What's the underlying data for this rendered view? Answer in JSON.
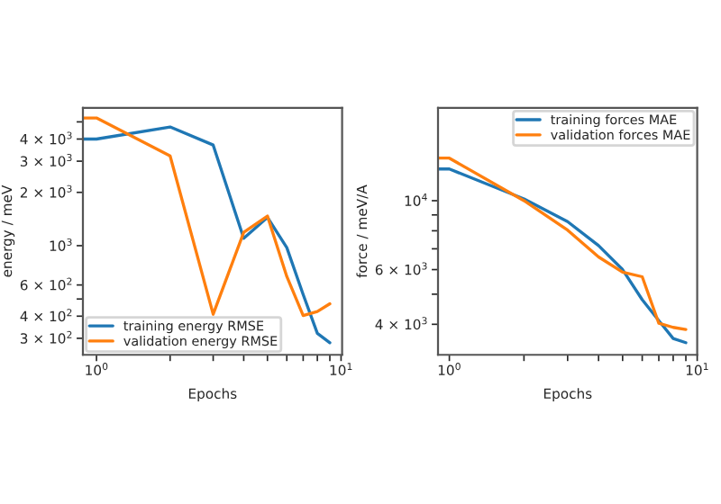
{
  "chart_data": [
    {
      "type": "line",
      "xlabel": "Epochs",
      "ylabel": "energy / meV",
      "log": "xy",
      "legend": "lower left",
      "grid": false,
      "x": [
        0.88,
        1,
        2,
        3,
        4,
        5,
        6,
        7,
        8,
        9
      ],
      "series": [
        {
          "name": "training energy RMSE",
          "color": "#1f77b4",
          "values": [
            4000,
            4000,
            4680,
            3700,
            1100,
            1445,
            975,
            530,
            320,
            283
          ]
        },
        {
          "name": "validation energy RMSE",
          "color": "#ff7f0e",
          "values": [
            5260,
            5260,
            3210,
            410,
            1190,
            1470,
            670,
            403,
            425,
            470
          ]
        }
      ],
      "xlim": [
        0.88,
        10.1
      ],
      "ylim": [
        242,
        6000
      ],
      "xticks": [
        {
          "value": 1,
          "label": "10$^{0}$"
        },
        {
          "value": 2,
          "label": null
        },
        {
          "value": 3,
          "label": null
        },
        {
          "value": 4,
          "label": null
        },
        {
          "value": 5,
          "label": null
        },
        {
          "value": 6,
          "label": null
        },
        {
          "value": 7,
          "label": null
        },
        {
          "value": 8,
          "label": null
        },
        {
          "value": 9,
          "label": null
        },
        {
          "value": 10,
          "label": "10$^{1}$"
        }
      ],
      "yticks": [
        {
          "value": 300,
          "label": "3 × 10$^{2}$"
        },
        {
          "value": 400,
          "label": "4 × 10$^{2}$"
        },
        {
          "value": 500,
          "label": null
        },
        {
          "value": 600,
          "label": "6 × 10$^{2}$"
        },
        {
          "value": 1000,
          "label": "10$^{3}$"
        },
        {
          "value": 2000,
          "label": "2 × 10$^{3}$"
        },
        {
          "value": 3000,
          "label": "3 × 10$^{3}$"
        },
        {
          "value": 4000,
          "label": "4 × 10$^{3}$"
        },
        {
          "value": 5000,
          "label": null
        }
      ]
    },
    {
      "type": "line",
      "xlabel": "Epochs",
      "ylabel": "force / meV/A",
      "log": "xy",
      "legend": "top right",
      "grid": false,
      "x": [
        0.9,
        1,
        2,
        3,
        4,
        5,
        6,
        7,
        8,
        9
      ],
      "series": [
        {
          "name": "training forces MAE",
          "color": "#1f77b4",
          "values": [
            12650,
            12650,
            10130,
            8560,
            7170,
            6000,
            4800,
            4110,
            3600,
            3490
          ]
        },
        {
          "name": "validation forces MAE",
          "color": "#ff7f0e",
          "values": [
            13710,
            13710,
            10000,
            8040,
            6590,
            5890,
            5690,
            4030,
            3910,
            3850
          ]
        }
      ],
      "xlim": [
        0.9,
        10
      ],
      "ylim": [
        3190,
        19900
      ],
      "xticks": [
        {
          "value": 1,
          "label": "10$^{0}$"
        },
        {
          "value": 2,
          "label": null
        },
        {
          "value": 3,
          "label": null
        },
        {
          "value": 4,
          "label": null
        },
        {
          "value": 5,
          "label": null
        },
        {
          "value": 6,
          "label": null
        },
        {
          "value": 7,
          "label": null
        },
        {
          "value": 8,
          "label": null
        },
        {
          "value": 9,
          "label": null
        },
        {
          "value": 10,
          "label": "10$^{1}$"
        }
      ],
      "yticks": [
        {
          "value": 4000,
          "label": "4 × 10$^{3}$"
        },
        {
          "value": 5000,
          "label": null
        },
        {
          "value": 6000,
          "label": "6 × 10$^{3}$"
        },
        {
          "value": 7000,
          "label": null
        },
        {
          "value": 8000,
          "label": null
        },
        {
          "value": 9000,
          "label": null
        },
        {
          "value": 10000,
          "label": "10$^{4}$"
        }
      ]
    }
  ]
}
